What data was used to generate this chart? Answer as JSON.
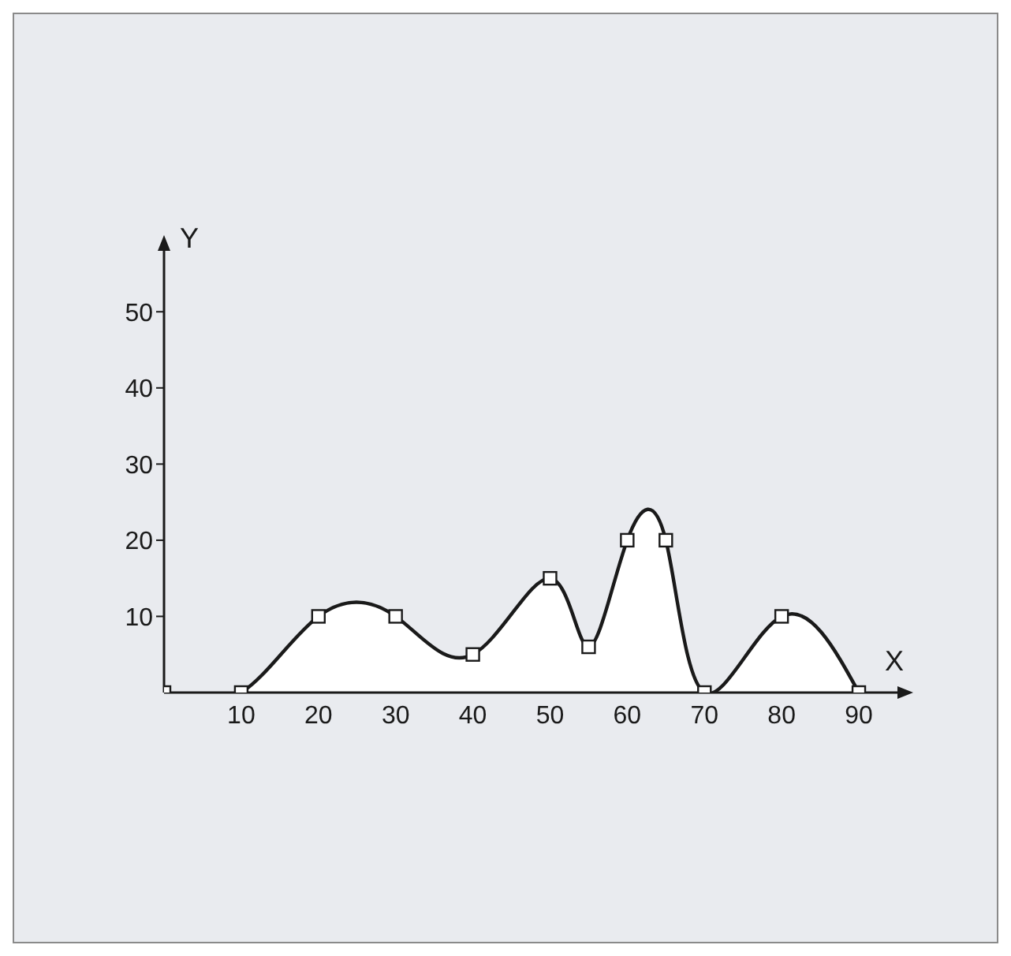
{
  "chart_data": {
    "type": "area",
    "xlabel": "X",
    "ylabel": "Y",
    "x": [
      0,
      10,
      20,
      30,
      40,
      50,
      55,
      60,
      65,
      70,
      80,
      90
    ],
    "series": [
      {
        "color": "#1a1a1a",
        "values": [
          0,
          0,
          10,
          10,
          5,
          15,
          6,
          20,
          20,
          0,
          10,
          0
        ]
      }
    ],
    "xlim": [
      0,
      95
    ],
    "ylim": [
      0,
      58
    ],
    "xticks": [
      10,
      20,
      30,
      40,
      50,
      60,
      70,
      80,
      90
    ],
    "yticks": [
      10,
      20,
      30,
      40,
      50
    ],
    "grid": false,
    "legend": false,
    "marker": "square",
    "line_style": "solid"
  }
}
